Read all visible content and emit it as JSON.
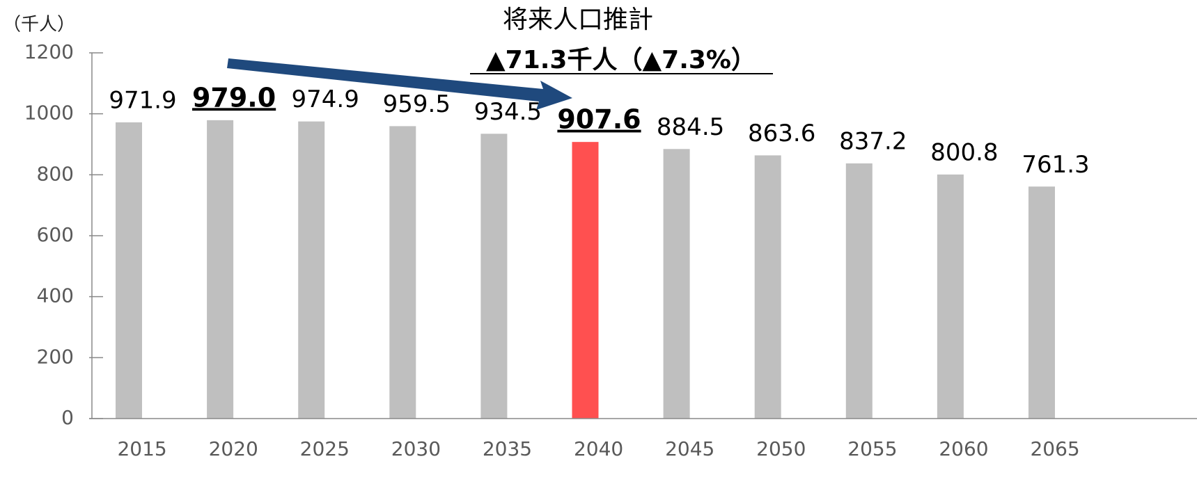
{
  "chart_data": {
    "type": "bar",
    "title": "将来人口推計",
    "unit_label": "（千人）",
    "annotation": "▲71.3千人（▲7.3%）",
    "categories": [
      "2015",
      "2020",
      "2025",
      "2030",
      "2035",
      "2040",
      "2045",
      "2050",
      "2055",
      "2060",
      "2065"
    ],
    "values": [
      971.9,
      979,
      974.9,
      959.5,
      934.5,
      907.6,
      884.5,
      863.6,
      837.2,
      800.8,
      761.3
    ],
    "value_labels": [
      "971.9",
      "979.0",
      "974.9",
      "959.5",
      "934.5",
      "907.6",
      "884.5",
      "863.6",
      "837.2",
      "800.8",
      "761.3"
    ],
    "colors": [
      "#bfbfbf",
      "#bfbfbf",
      "#bfbfbf",
      "#bfbfbf",
      "#bfbfbf",
      "#ff5050",
      "#bfbfbf",
      "#bfbfbf",
      "#bfbfbf",
      "#bfbfbf",
      "#bfbfbf"
    ],
    "emphasized": [
      false,
      true,
      false,
      false,
      false,
      true,
      false,
      false,
      false,
      false,
      false
    ],
    "ylim": [
      0,
      1200
    ],
    "yticks": [
      0,
      200,
      400,
      600,
      800,
      1000,
      1200
    ],
    "grid": false
  }
}
